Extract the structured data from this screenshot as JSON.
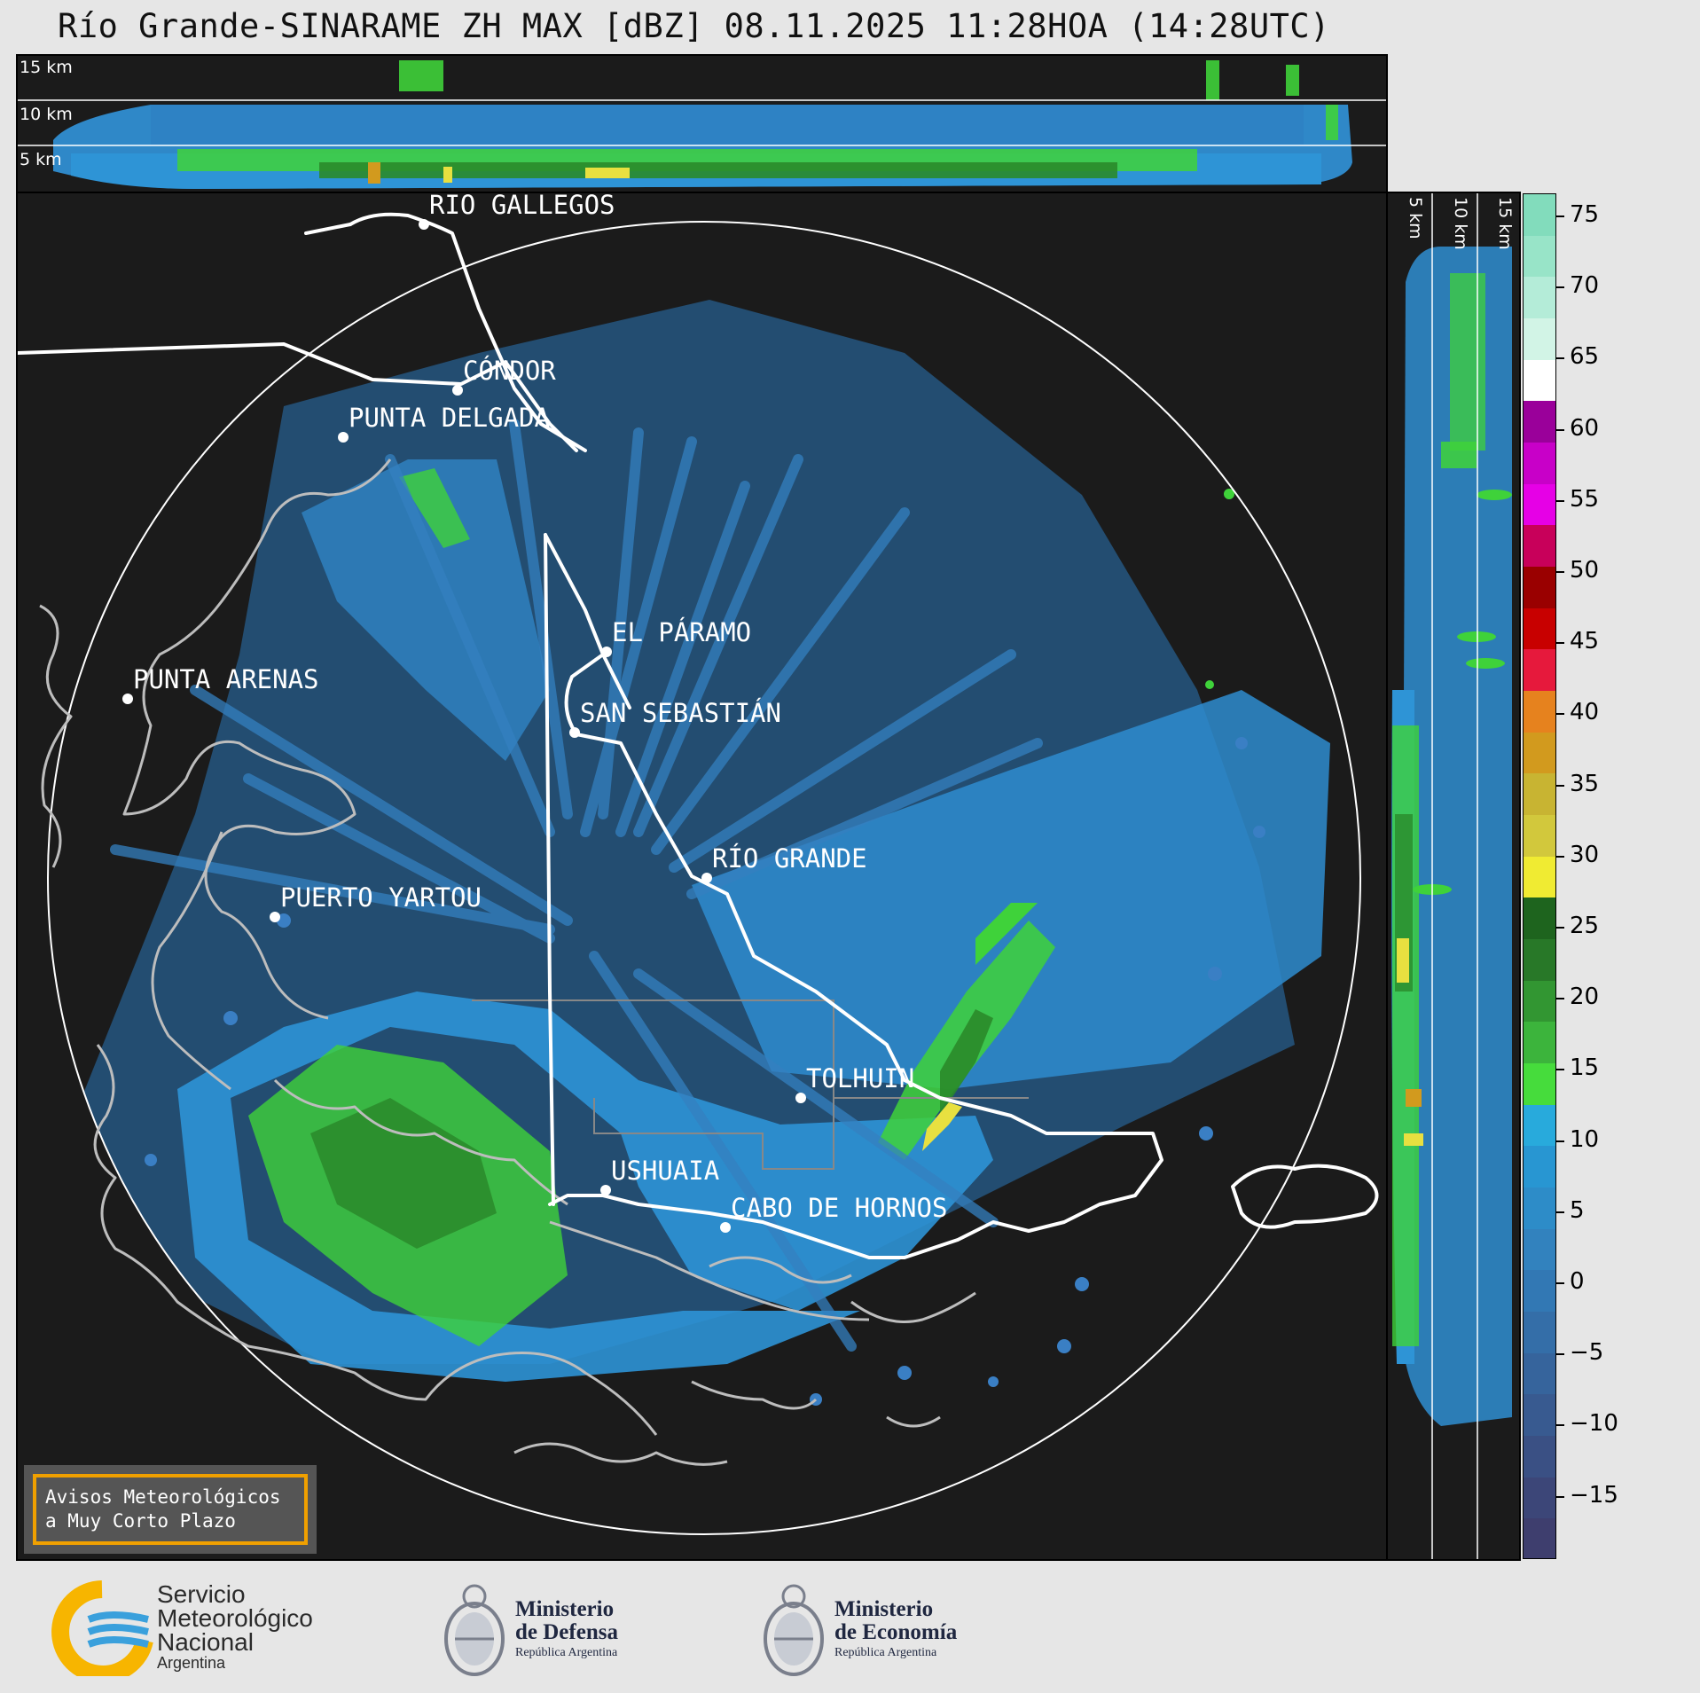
{
  "header": {
    "title": "Río Grande-SINARAME ZH MAX [dBZ] 08.11.2025 11:28HOA (14:28UTC)"
  },
  "top_panel": {
    "altitude_labels": [
      "15 km",
      "10 km",
      "5 km"
    ]
  },
  "side_panel": {
    "altitude_labels": [
      "5 km",
      "10 km",
      "15 km"
    ]
  },
  "map": {
    "cities": [
      {
        "name": "RÍO GALLEGOS"
      },
      {
        "name": "CÓNDOR"
      },
      {
        "name": "PUNTA DELGADA"
      },
      {
        "name": "EL PÁRAMO"
      },
      {
        "name": "SAN SEBASTIÁN"
      },
      {
        "name": "PUNTA ARENAS"
      },
      {
        "name": "RÍO GRANDE"
      },
      {
        "name": "PUERTO YARTOU"
      },
      {
        "name": "TOLHUIN"
      },
      {
        "name": "USHUAIA"
      },
      {
        "name": "CABO DE HORNOS"
      }
    ],
    "echo_colors": {
      "weak": "#3a7fc4",
      "moderate": "#2e94d6",
      "green": "#3fd23a",
      "dark_green": "#2a8a2a",
      "yellow": "#e8e040",
      "background": "#1b1b1b"
    }
  },
  "colorbar": {
    "unit": "dBZ",
    "tick_labels": [
      "75",
      "70",
      "65",
      "60",
      "55",
      "50",
      "45",
      "40",
      "35",
      "30",
      "25",
      "20",
      "15",
      "10",
      "5",
      "0",
      "−5",
      "−10",
      "−15"
    ],
    "segments": [
      {
        "color": "#82dcbc"
      },
      {
        "color": "#98e4c8"
      },
      {
        "color": "#b4ecd8"
      },
      {
        "color": "#d2f4e6"
      },
      {
        "color": "#ffffff"
      },
      {
        "color": "#9a009a"
      },
      {
        "color": "#c800c8"
      },
      {
        "color": "#e600e6"
      },
      {
        "color": "#c8005a"
      },
      {
        "color": "#9a0000"
      },
      {
        "color": "#c80000"
      },
      {
        "color": "#e6193c"
      },
      {
        "color": "#e6821e"
      },
      {
        "color": "#d29a1e"
      },
      {
        "color": "#c8b432"
      },
      {
        "color": "#d2c83c"
      },
      {
        "color": "#f0eb32"
      },
      {
        "color": "#1e641e"
      },
      {
        "color": "#287828"
      },
      {
        "color": "#329632"
      },
      {
        "color": "#3cb43c"
      },
      {
        "color": "#46dc3c"
      },
      {
        "color": "#28aadc"
      },
      {
        "color": "#2896d2"
      },
      {
        "color": "#2d8cc8"
      },
      {
        "color": "#3282be"
      },
      {
        "color": "#3278b4"
      },
      {
        "color": "#346ea8"
      },
      {
        "color": "#36649c"
      },
      {
        "color": "#385a90"
      },
      {
        "color": "#3a5084"
      },
      {
        "color": "#3c4678"
      },
      {
        "color": "#3e3e6e"
      }
    ]
  },
  "alert": {
    "line1": "Avisos Meteorológicos",
    "line2": "a Muy Corto Plazo"
  },
  "footer": {
    "smn": {
      "line1": "Servicio",
      "line2": "Meteorológico",
      "line3": "Nacional",
      "line4": "Argentina"
    },
    "defensa": {
      "line1": "Ministerio",
      "line2": "de Defensa",
      "line3": "República Argentina"
    },
    "economia": {
      "line1": "Ministerio",
      "line2": "de Economía",
      "line3": "República Argentina"
    }
  }
}
